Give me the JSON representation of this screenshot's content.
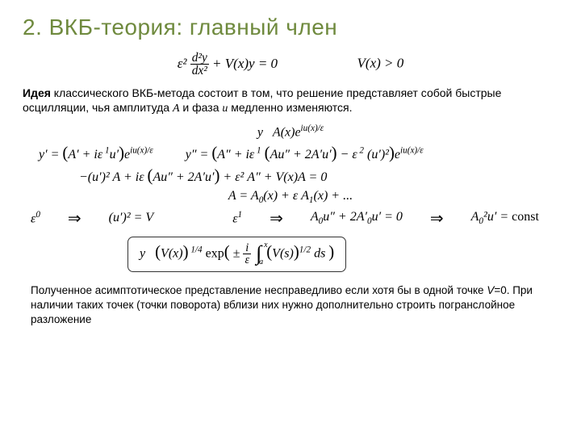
{
  "title_color": "#6f8a3e",
  "title": "2. ВКБ-теория: главный член",
  "eq_top_left": "ε² <span class='frac'><span class='n'>d²y</span><span class='d'>dx²</span></span> + V(x)y = 0",
  "eq_top_right": "V(x) > 0",
  "para1_prefix_bold": "Идея",
  "para1_rest": " классического ВКБ-метода состоит в том, что решение представляет собой быстрые осцилляции, чья амплитуда <i>A</i> и фаза <i>u</i> медленно изменяются.",
  "eq_y_ansatz": "y&nbsp; &nbsp;A(x)e<span class='sup'>iu(x)/ε</span>",
  "eq_yprime": "y′ = <span class='bigp'>(</span>A′ + iε<span class='sup'>&nbsp;1</span>u′<span class='bigp'>)</span>e<span class='sup'>iu(x)/ε</span>",
  "eq_ydprime": "y″ = <span class='bigp'>(</span>A″ + iε<span class='sup'>&nbsp;1</span> <span class='bigp'>(</span>Au″ + 2A′u′<span class='bigp'>)</span> − ε<span class='sup'>&nbsp;2</span> (u′)²<span class='bigp'>)</span>e<span class='sup'>iu(x)/ε</span>",
  "eq_collect": "−(u′)² A + iε <span class='bigp'>(</span>Au″ + 2A′u′<span class='bigp'>)</span> + ε² A″ + V(x)A = 0",
  "eq_expand": "A = A<span class='sub'>0</span>(x) + ε A<span class='sub'>1</span>(x) + ...",
  "eps0": "ε<span class='sup'>0</span>",
  "eps0_eq": "(u′)² = V",
  "eps1": "ε<span class='sup'>1</span>",
  "eps1_eq": "A<span class='sub'>0</span>u″ + 2A′<span class='sub'>0</span>u′ = 0",
  "eps1_res": "A<span class='sub'>0</span>²u′ = <span class='rm'>const</span>",
  "boxed_eq": "y&nbsp; &nbsp;<span class='bigp'>(</span>V(x)<span class='bigp'>)</span><span class='sup'>&nbsp;1/4</span> <span class='rm'>exp</span><span class='bigp'>(</span> ± <span class='frac'><span class='n'>i</span><span class='d'>ε</span></span> <span class='intg'>∫<span class='lo'>a</span><span class='hi'>x</span></span> <span class='bigp'>(</span>V(s)<span class='bigp'>)</span><span class='sup'>1/2</span> ds <span class='bigp'>)</span>",
  "para2": "Полученное асимптотическое представление несправедливо если хотя бы в одной точке <i>V</i>=0. При наличии таких точек (точки поворота) вблизи них нужно дополнительно строить погранслойное разложение"
}
